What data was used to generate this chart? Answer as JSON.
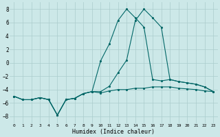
{
  "xlabel": "Humidex (Indice chaleur)",
  "ylabel": "",
  "bg_color": "#cce8e8",
  "grid_color": "#aacccc",
  "line_color": "#006666",
  "xlim": [
    -0.5,
    23.5
  ],
  "ylim": [
    -9,
    9
  ],
  "yticks": [
    -8,
    -6,
    -4,
    -2,
    0,
    2,
    4,
    6,
    8
  ],
  "xticks": [
    0,
    1,
    2,
    3,
    4,
    5,
    6,
    7,
    8,
    9,
    10,
    11,
    12,
    13,
    14,
    15,
    16,
    17,
    18,
    19,
    20,
    21,
    22,
    23
  ],
  "line1_x": [
    0,
    1,
    2,
    3,
    4,
    5,
    6,
    7,
    8,
    9,
    10,
    11,
    12,
    13,
    14,
    15,
    16,
    17,
    18,
    19,
    20,
    21,
    22,
    23
  ],
  "line1_y": [
    -5.0,
    -5.5,
    -5.5,
    -5.2,
    -5.5,
    -7.8,
    -5.5,
    -5.3,
    -4.6,
    -4.3,
    -4.5,
    -4.2,
    -4.0,
    -4.0,
    -3.8,
    -3.8,
    -3.6,
    -3.6,
    -3.6,
    -3.8,
    -3.9,
    -4.0,
    -4.2,
    -4.3
  ],
  "line2_x": [
    0,
    1,
    2,
    3,
    4,
    5,
    6,
    7,
    8,
    9,
    10,
    11,
    12,
    13,
    14,
    15,
    16,
    17,
    18,
    19,
    20,
    21,
    22,
    23
  ],
  "line2_y": [
    -5.0,
    -5.5,
    -5.5,
    -5.2,
    -5.5,
    -7.8,
    -5.5,
    -5.3,
    -4.6,
    -4.3,
    0.3,
    2.8,
    6.3,
    8.0,
    6.7,
    5.3,
    -2.5,
    -2.7,
    -2.5,
    -2.8,
    -3.0,
    -3.2,
    -3.6,
    -4.3
  ],
  "line3_x": [
    0,
    1,
    2,
    3,
    4,
    5,
    6,
    7,
    8,
    9,
    10,
    11,
    12,
    13,
    14,
    15,
    16,
    17,
    18,
    19,
    20,
    21,
    22,
    23
  ],
  "line3_y": [
    -5.0,
    -5.5,
    -5.5,
    -5.2,
    -5.5,
    -7.8,
    -5.5,
    -5.3,
    -4.6,
    -4.3,
    -4.3,
    -3.5,
    -1.5,
    0.4,
    6.3,
    8.0,
    6.7,
    5.3,
    -2.5,
    -2.8,
    -3.0,
    -3.2,
    -3.6,
    -4.3
  ],
  "marker": ".",
  "markersize": 2.5,
  "linewidth": 0.8
}
